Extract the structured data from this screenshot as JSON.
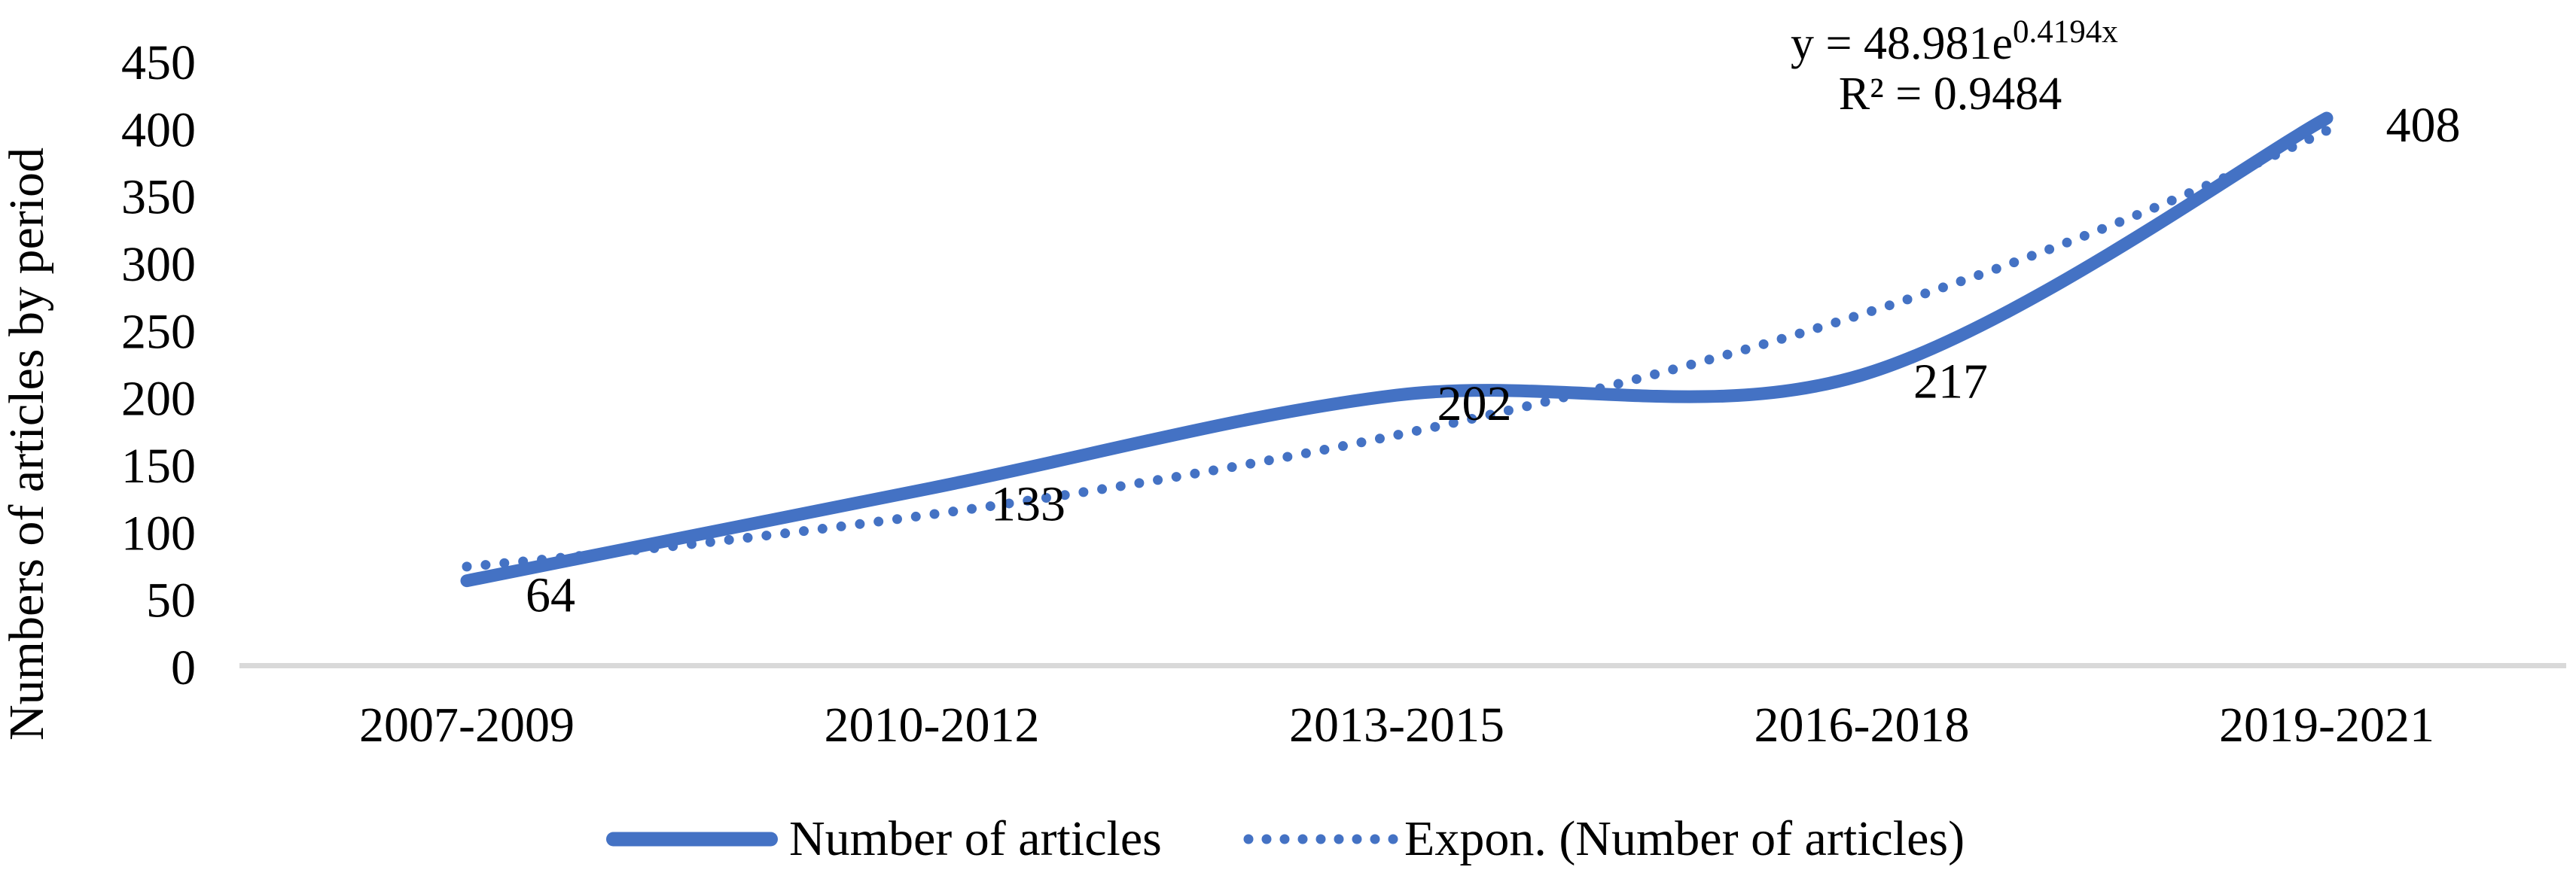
{
  "chart_data": {
    "type": "line",
    "categories": [
      "2007-2009",
      "2010-2012",
      "2013-2015",
      "2016-2018",
      "2019-2021"
    ],
    "series": [
      {
        "name": "Number of articles",
        "values": [
          64,
          133,
          202,
          217,
          408
        ],
        "style": "solid-smooth"
      }
    ],
    "data_labels": [
      "64",
      "133",
      "202",
      "217",
      "408"
    ],
    "trendline": {
      "name": "Expon. (Number of articles)",
      "type": "exponential",
      "a": 48.981,
      "b": 0.4194,
      "equation_base": "y = 48.981e",
      "equation_exponent": "0.4194x",
      "r_squared": "R² = 0.9484",
      "style": "dotted"
    },
    "ylabel": "Numbers of articles by period",
    "xlabel": "",
    "ylim": [
      0,
      450
    ],
    "ytick_step": 50,
    "yticks": [
      "0",
      "50",
      "100",
      "150",
      "200",
      "250",
      "300",
      "350",
      "400",
      "450"
    ],
    "grid": false,
    "legend_position": "bottom"
  },
  "colors": {
    "series_blue": "#4472C4",
    "axis_line": "#D9D9D9",
    "text": "#000000",
    "background": "#FFFFFF"
  }
}
